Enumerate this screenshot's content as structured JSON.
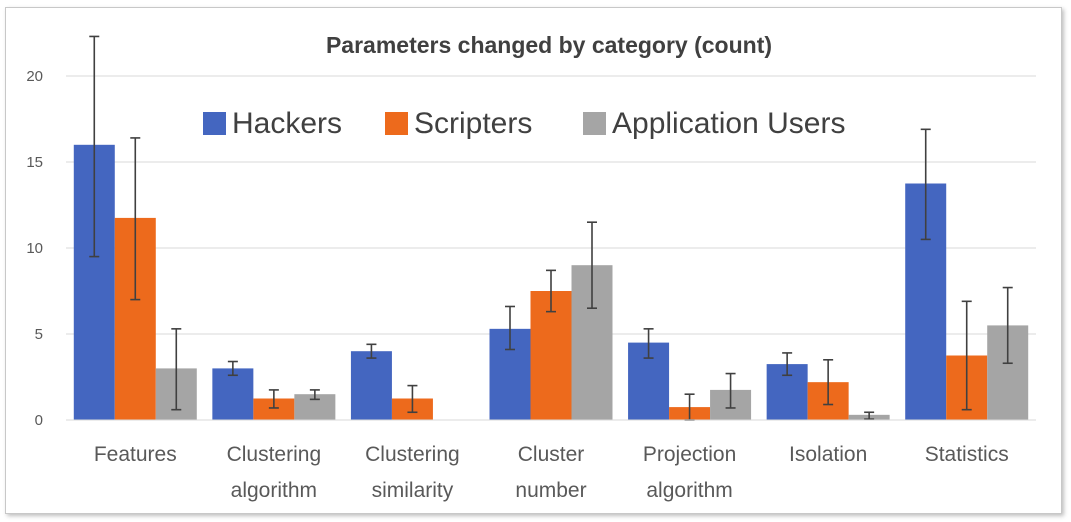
{
  "chart_data": {
    "type": "bar",
    "title": "Parameters changed by category (count)",
    "xlabel": "",
    "ylabel": "",
    "ylim": [
      0,
      20
    ],
    "yticks": [
      "0",
      "5",
      "10",
      "15",
      "20"
    ],
    "grid": true,
    "legend_position": "top",
    "categories": [
      [
        "Features"
      ],
      [
        "Clustering",
        "algorithm"
      ],
      [
        "Clustering",
        "similarity"
      ],
      [
        "Cluster",
        "number"
      ],
      [
        "Projection",
        "algorithm"
      ],
      [
        "Isolation"
      ],
      [
        "Statistics"
      ]
    ],
    "series": [
      {
        "name": "Hackers",
        "color": "#4466c0",
        "values": [
          16.0,
          3.0,
          4.0,
          5.3,
          4.5,
          3.25,
          13.75
        ],
        "error_low": [
          9.5,
          2.6,
          3.6,
          4.1,
          3.6,
          2.6,
          10.5
        ],
        "error_high": [
          22.3,
          3.4,
          4.4,
          6.6,
          5.3,
          3.9,
          16.9
        ]
      },
      {
        "name": "Scripters",
        "color": "#ed6a1c",
        "values": [
          11.75,
          1.25,
          1.25,
          7.5,
          0.75,
          2.2,
          3.75
        ],
        "error_low": [
          7.0,
          0.7,
          0.45,
          6.3,
          0.0,
          0.9,
          0.6
        ],
        "error_high": [
          16.4,
          1.75,
          2.0,
          8.7,
          1.5,
          3.5,
          6.9
        ]
      },
      {
        "name": "Application Users",
        "color": "#a5a5a5",
        "values": [
          3.0,
          1.5,
          0,
          9.0,
          1.75,
          0.3,
          5.5
        ],
        "error_low": [
          0.6,
          1.2,
          null,
          6.5,
          0.7,
          0.05,
          3.3
        ],
        "error_high": [
          5.3,
          1.75,
          null,
          11.5,
          2.7,
          0.45,
          7.7
        ]
      }
    ]
  }
}
